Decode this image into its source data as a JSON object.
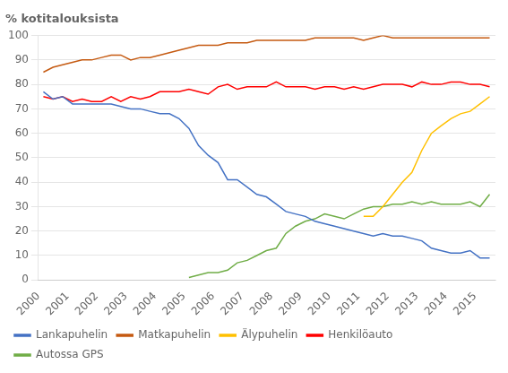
{
  "chart_data": {
    "type": "line",
    "title": "% kotitalouksista",
    "xlim": [
      2000.0,
      2015.7
    ],
    "ylim": [
      0,
      100
    ],
    "xticks": [
      2000,
      2001,
      2002,
      2003,
      2004,
      2005,
      2006,
      2007,
      2008,
      2009,
      2010,
      2011,
      2012,
      2013,
      2014,
      2015
    ],
    "yticks": [
      0,
      10,
      20,
      30,
      40,
      50,
      60,
      70,
      80,
      90,
      100
    ],
    "grid": true,
    "legend": "lower left",
    "series": [
      {
        "name": "Lankapuhelin",
        "color": "#4472C4",
        "x": [
          2000.17,
          2000.5,
          2000.83,
          2001.17,
          2001.5,
          2001.83,
          2002.17,
          2002.5,
          2002.83,
          2003.17,
          2003.5,
          2003.83,
          2004.17,
          2004.5,
          2004.83,
          2005.17,
          2005.5,
          2005.83,
          2006.17,
          2006.5,
          2006.83,
          2007.17,
          2007.5,
          2007.83,
          2008.17,
          2008.5,
          2008.83,
          2009.17,
          2009.5,
          2009.83,
          2010.17,
          2010.5,
          2010.83,
          2011.17,
          2011.5,
          2011.83,
          2012.17,
          2012.5,
          2012.83,
          2013.17,
          2013.5,
          2013.83,
          2014.17,
          2014.5,
          2014.83,
          2015.17,
          2015.5
        ],
        "values": [
          77,
          74,
          75,
          72,
          72,
          72,
          72,
          72,
          71,
          70,
          70,
          69,
          68,
          68,
          66,
          62,
          55,
          51,
          48,
          41,
          41,
          38,
          35,
          34,
          31,
          28,
          27,
          26,
          24,
          23,
          22,
          21,
          20,
          19,
          18,
          19,
          18,
          18,
          17,
          16,
          13,
          12,
          11,
          11,
          12,
          9,
          9
        ]
      },
      {
        "name": "Matkapuhelin",
        "color": "#C55A11",
        "x": [
          2000.17,
          2000.5,
          2000.83,
          2001.17,
          2001.5,
          2001.83,
          2002.17,
          2002.5,
          2002.83,
          2003.17,
          2003.5,
          2003.83,
          2004.17,
          2004.5,
          2004.83,
          2005.17,
          2005.5,
          2005.83,
          2006.17,
          2006.5,
          2006.83,
          2007.17,
          2007.5,
          2007.83,
          2008.17,
          2008.5,
          2008.83,
          2009.17,
          2009.5,
          2009.83,
          2010.17,
          2010.5,
          2010.83,
          2011.17,
          2011.5,
          2011.83,
          2012.17,
          2012.5,
          2012.83,
          2013.17,
          2013.5,
          2013.83,
          2014.17,
          2014.5,
          2014.83,
          2015.17,
          2015.5
        ],
        "values": [
          85,
          87,
          88,
          89,
          90,
          90,
          91,
          92,
          92,
          90,
          91,
          91,
          92,
          93,
          94,
          95,
          96,
          96,
          96,
          97,
          97,
          97,
          98,
          98,
          98,
          98,
          98,
          98,
          99,
          99,
          99,
          99,
          99,
          98,
          99,
          100,
          99,
          99,
          99,
          99,
          99,
          99,
          99,
          99,
          99,
          99,
          99
        ]
      },
      {
        "name": "Älypuhelin",
        "color": "#FFC000",
        "x": [
          2011.17,
          2011.5,
          2011.83,
          2012.17,
          2012.5,
          2012.83,
          2013.17,
          2013.5,
          2013.83,
          2014.17,
          2014.5,
          2014.83,
          2015.17,
          2015.5
        ],
        "values": [
          26,
          26,
          30,
          35,
          40,
          44,
          53,
          60,
          63,
          66,
          68,
          69,
          72,
          75
        ]
      },
      {
        "name": "Henkilöauto",
        "color": "#FF0000",
        "x": [
          2000.17,
          2000.5,
          2000.83,
          2001.17,
          2001.5,
          2001.83,
          2002.17,
          2002.5,
          2002.83,
          2003.17,
          2003.5,
          2003.83,
          2004.17,
          2004.5,
          2004.83,
          2005.17,
          2005.5,
          2005.83,
          2006.17,
          2006.5,
          2006.83,
          2007.17,
          2007.5,
          2007.83,
          2008.17,
          2008.5,
          2008.83,
          2009.17,
          2009.5,
          2009.83,
          2010.17,
          2010.5,
          2010.83,
          2011.17,
          2011.5,
          2011.83,
          2012.17,
          2012.5,
          2012.83,
          2013.17,
          2013.5,
          2013.83,
          2014.17,
          2014.5,
          2014.83,
          2015.17,
          2015.5
        ],
        "values": [
          75,
          74,
          75,
          73,
          74,
          73,
          73,
          75,
          73,
          75,
          74,
          75,
          77,
          77,
          77,
          78,
          77,
          76,
          79,
          80,
          78,
          79,
          79,
          79,
          81,
          79,
          79,
          79,
          78,
          79,
          79,
          78,
          79,
          78,
          79,
          80,
          80,
          80,
          79,
          81,
          80,
          80,
          81,
          81,
          80,
          80,
          79
        ]
      },
      {
        "name": "Autossa GPS",
        "color": "#70AD47",
        "x": [
          2005.17,
          2005.5,
          2005.83,
          2006.17,
          2006.5,
          2006.83,
          2007.17,
          2007.5,
          2007.83,
          2008.17,
          2008.5,
          2008.83,
          2009.17,
          2009.5,
          2009.83,
          2010.17,
          2010.5,
          2010.83,
          2011.17,
          2011.5,
          2011.83,
          2012.17,
          2012.5,
          2012.83,
          2013.17,
          2013.5,
          2013.83,
          2014.17,
          2014.5,
          2014.83,
          2015.17,
          2015.5
        ],
        "values": [
          1,
          2,
          3,
          3,
          4,
          7,
          8,
          10,
          12,
          13,
          19,
          22,
          24,
          25,
          27,
          26,
          25,
          27,
          29,
          30,
          30,
          31,
          31,
          32,
          31,
          32,
          31,
          31,
          31,
          32,
          30,
          35
        ]
      }
    ]
  }
}
